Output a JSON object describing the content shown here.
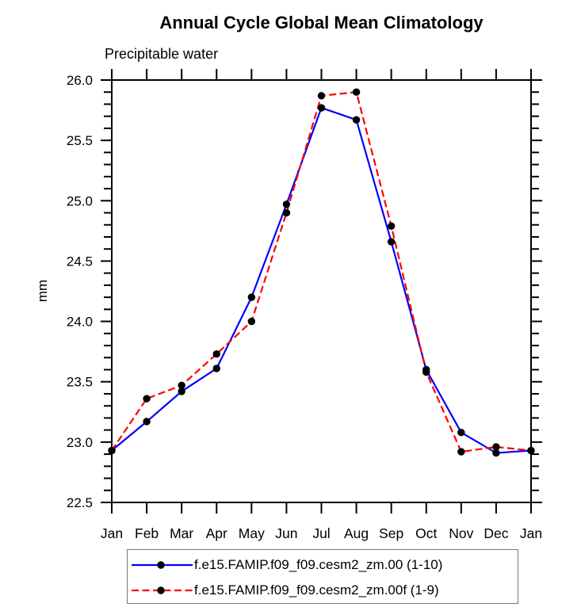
{
  "title": "Annual Cycle Global Mean Climatology",
  "subtitle": "Precipitable water",
  "y_axis_label": "mm",
  "legend": {
    "position": "bottom",
    "entries": [
      {
        "label": "f.e15.FAMIP.f09_f09.cesm2_zm.00 (1-10)",
        "color": "#0000ff",
        "line_style": "solid",
        "marker": "filled-circle"
      },
      {
        "label": "f.e15.FAMIP.f09_f09.cesm2_zm.00f (1-9)",
        "color": "#ff0000",
        "line_style": "dashed",
        "marker": "filled-circle"
      }
    ]
  },
  "colors": {
    "axis": "#000000",
    "marker": "#000000",
    "series1": "#0000ff",
    "series2": "#ff0000",
    "background": "#ffffff"
  },
  "chart_data": {
    "type": "line",
    "title": "Annual Cycle Global Mean Climatology",
    "subtitle": "Precipitable water",
    "xlabel": "",
    "ylabel": "mm",
    "categories": [
      "Jan",
      "Feb",
      "Mar",
      "Apr",
      "May",
      "Jun",
      "Jul",
      "Aug",
      "Sep",
      "Oct",
      "Nov",
      "Dec",
      "Jan"
    ],
    "series": [
      {
        "name": "f.e15.FAMIP.f09_f09.cesm2_zm.00 (1-10)",
        "color": "#0000ff",
        "line_style": "solid",
        "marker": "filled-circle",
        "marker_color": "#000000",
        "values": [
          22.93,
          23.17,
          23.42,
          23.61,
          24.2,
          24.97,
          25.77,
          25.67,
          24.66,
          23.6,
          23.08,
          22.91,
          22.93
        ]
      },
      {
        "name": "f.e15.FAMIP.f09_f09.cesm2_zm.00f (1-9)",
        "color": "#ff0000",
        "line_style": "dashed",
        "marker": "filled-circle",
        "marker_color": "#000000",
        "values": [
          22.93,
          23.36,
          23.47,
          23.73,
          24.0,
          24.9,
          25.87,
          25.9,
          24.79,
          23.58,
          22.92,
          22.96,
          22.93
        ]
      }
    ],
    "ylim": [
      22.5,
      26.0
    ],
    "ytick_major_step": 0.5,
    "ytick_minor_step": 0.1,
    "ytick_labels": [
      "22.5",
      "23.0",
      "23.5",
      "24.0",
      "24.5",
      "25.0",
      "25.5",
      "26.0"
    ],
    "grid": false,
    "frame": "box-with-outward-ticks",
    "legend_position": "bottom"
  }
}
